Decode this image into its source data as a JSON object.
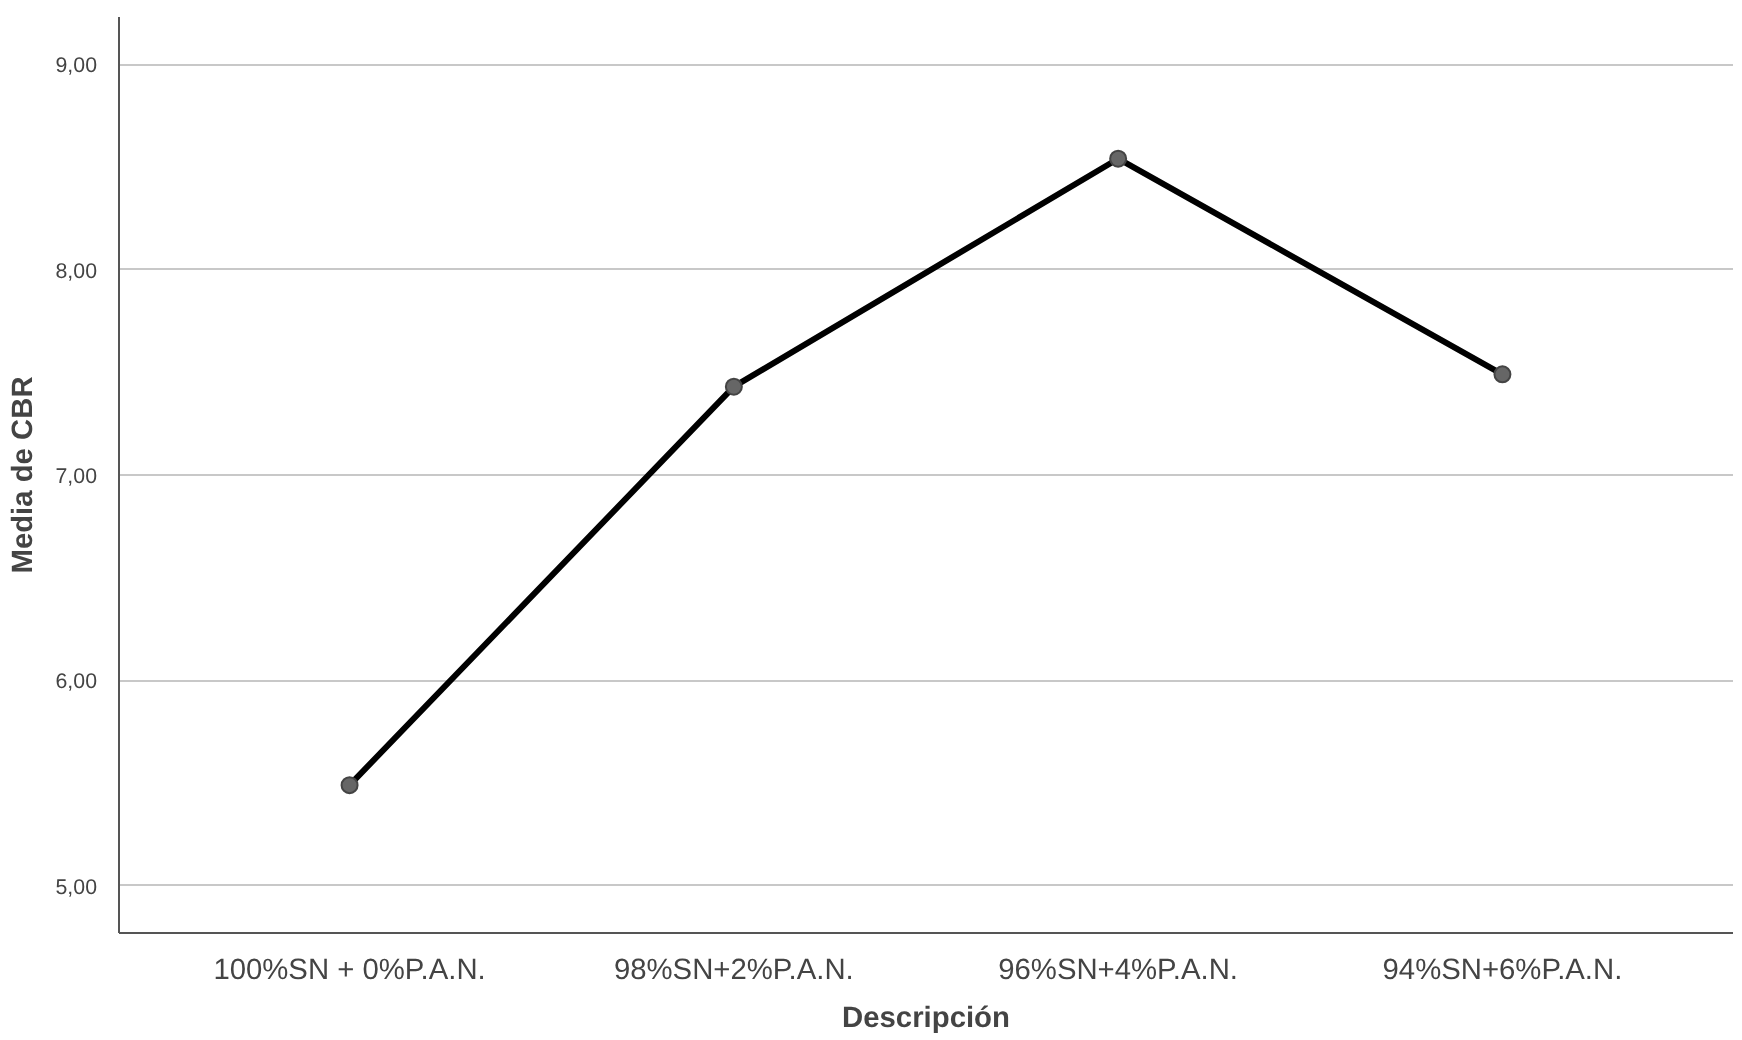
{
  "chart_data": {
    "type": "line",
    "xlabel": "Descripción",
    "ylabel": "Media de CBR",
    "categories": [
      "100%SN + 0%P.A.N.",
      "98%SN+2%P.A.N.",
      "96%SN+4%P.A.N.",
      "94%SN+6%P.A.N."
    ],
    "series": [
      {
        "color": "#000000",
        "values": [
          5.49,
          7.43,
          8.54,
          7.49
        ]
      }
    ],
    "ylim": [
      4.77,
      9.23
    ],
    "yticks": [
      {
        "value": 5,
        "label": "5,00"
      },
      {
        "value": 6,
        "label": "6,00"
      },
      {
        "value": 7,
        "label": "7,00"
      },
      {
        "value": 8,
        "label": "8,00"
      },
      {
        "value": 9,
        "label": "9,00"
      }
    ],
    "grid": "y",
    "marker": "circle",
    "line_style": "solid"
  }
}
